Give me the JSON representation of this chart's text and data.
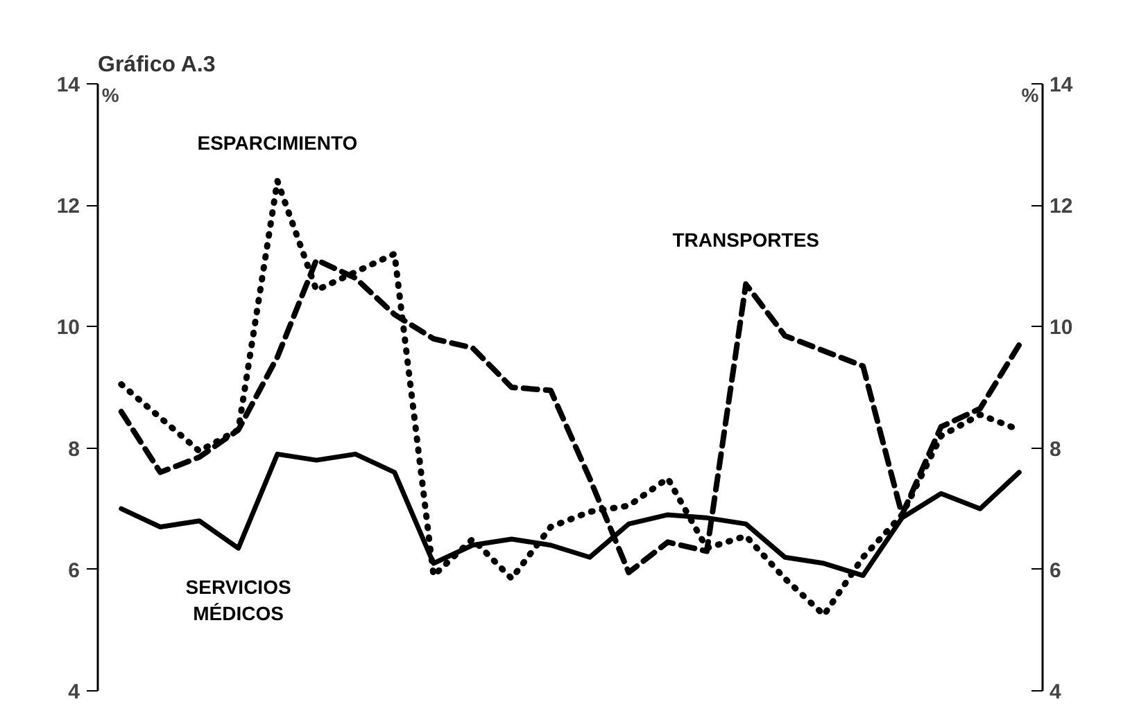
{
  "chart_data": {
    "type": "line",
    "title": "Gráfico A.3",
    "ylabel": "%",
    "y2label": "%",
    "categories": [
      null,
      null,
      null,
      null,
      null,
      null,
      null,
      null,
      null,
      null,
      null,
      null,
      null,
      null,
      null,
      null,
      null,
      null,
      null,
      null,
      null,
      null,
      null,
      null
    ],
    "series": [
      {
        "name": "ESPARCIMIENTO",
        "color": "#000000",
        "line_style": "dotted",
        "values": [
          9.05,
          8.5,
          7.95,
          8.3,
          12.4,
          10.6,
          10.9,
          11.2,
          5.9,
          6.5,
          5.85,
          6.7,
          6.95,
          7.05,
          7.5,
          6.35,
          6.55,
          5.85,
          5.25,
          6.2,
          6.9,
          8.2,
          8.55,
          8.3
        ]
      },
      {
        "name": "TRANSPORTES",
        "color": "#000000",
        "line_style": "dashed",
        "values": [
          8.6,
          7.6,
          7.85,
          8.3,
          9.5,
          11.1,
          10.8,
          10.2,
          9.8,
          9.65,
          9.0,
          8.95,
          7.5,
          5.95,
          6.45,
          6.3,
          10.7,
          9.85,
          9.6,
          9.35,
          6.9,
          8.35,
          8.65,
          9.7
        ]
      },
      {
        "name": "SERVICIOS MÉDICOS",
        "color": "#000000",
        "line_style": "solid",
        "values": [
          7.0,
          6.7,
          6.8,
          6.35,
          7.9,
          7.8,
          7.9,
          7.6,
          6.1,
          6.4,
          6.5,
          6.4,
          6.2,
          6.75,
          6.9,
          6.85,
          6.75,
          6.2,
          6.1,
          5.9,
          6.85,
          7.25,
          7.0,
          7.6
        ]
      }
    ],
    "ylim": [
      4,
      14
    ],
    "yticks": [
      4,
      6,
      8,
      10,
      12,
      14
    ],
    "y2lim": [
      4,
      14
    ],
    "y2ticks": [
      4,
      6,
      8,
      10,
      12,
      14
    ],
    "tick_labels": "y",
    "grid": false,
    "marker": "none"
  }
}
